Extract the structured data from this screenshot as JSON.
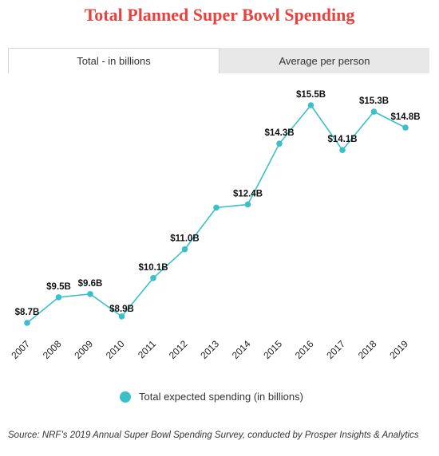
{
  "title": "Total Planned Super Bowl Spending",
  "tabs": [
    {
      "label": "Total - in billions"
    },
    {
      "label": "Average per person"
    }
  ],
  "legend": {
    "label": "Total expected spending (in billions)",
    "color": "#3bbfc9"
  },
  "source": "Source: NRF’s 2019 Annual Super Bowl Spending Survey, conducted by Prosper Insights & Analytics",
  "chart_data": {
    "type": "line",
    "categories": [
      "2007",
      "2008",
      "2009",
      "2010",
      "2011",
      "2012",
      "2013",
      "2014",
      "2015",
      "2016",
      "2017",
      "2018",
      "2019"
    ],
    "series": [
      {
        "name": "Total expected spending (in billions)",
        "values": [
          8.7,
          9.5,
          9.6,
          8.9,
          10.1,
          11.0,
          12.3,
          12.4,
          14.3,
          15.5,
          14.1,
          15.3,
          14.8
        ],
        "labels": [
          "$8.7B",
          "$9.5B",
          "$9.6B",
          "$8.9B",
          "$10.1B",
          "$11.0B",
          "",
          "$12.4B",
          "$14.3B",
          "$15.5B",
          "$14.1B",
          "$15.3B",
          "$14.8B"
        ],
        "color": "#3bbfc9"
      }
    ],
    "grid": false,
    "legend_position": "bottom"
  }
}
